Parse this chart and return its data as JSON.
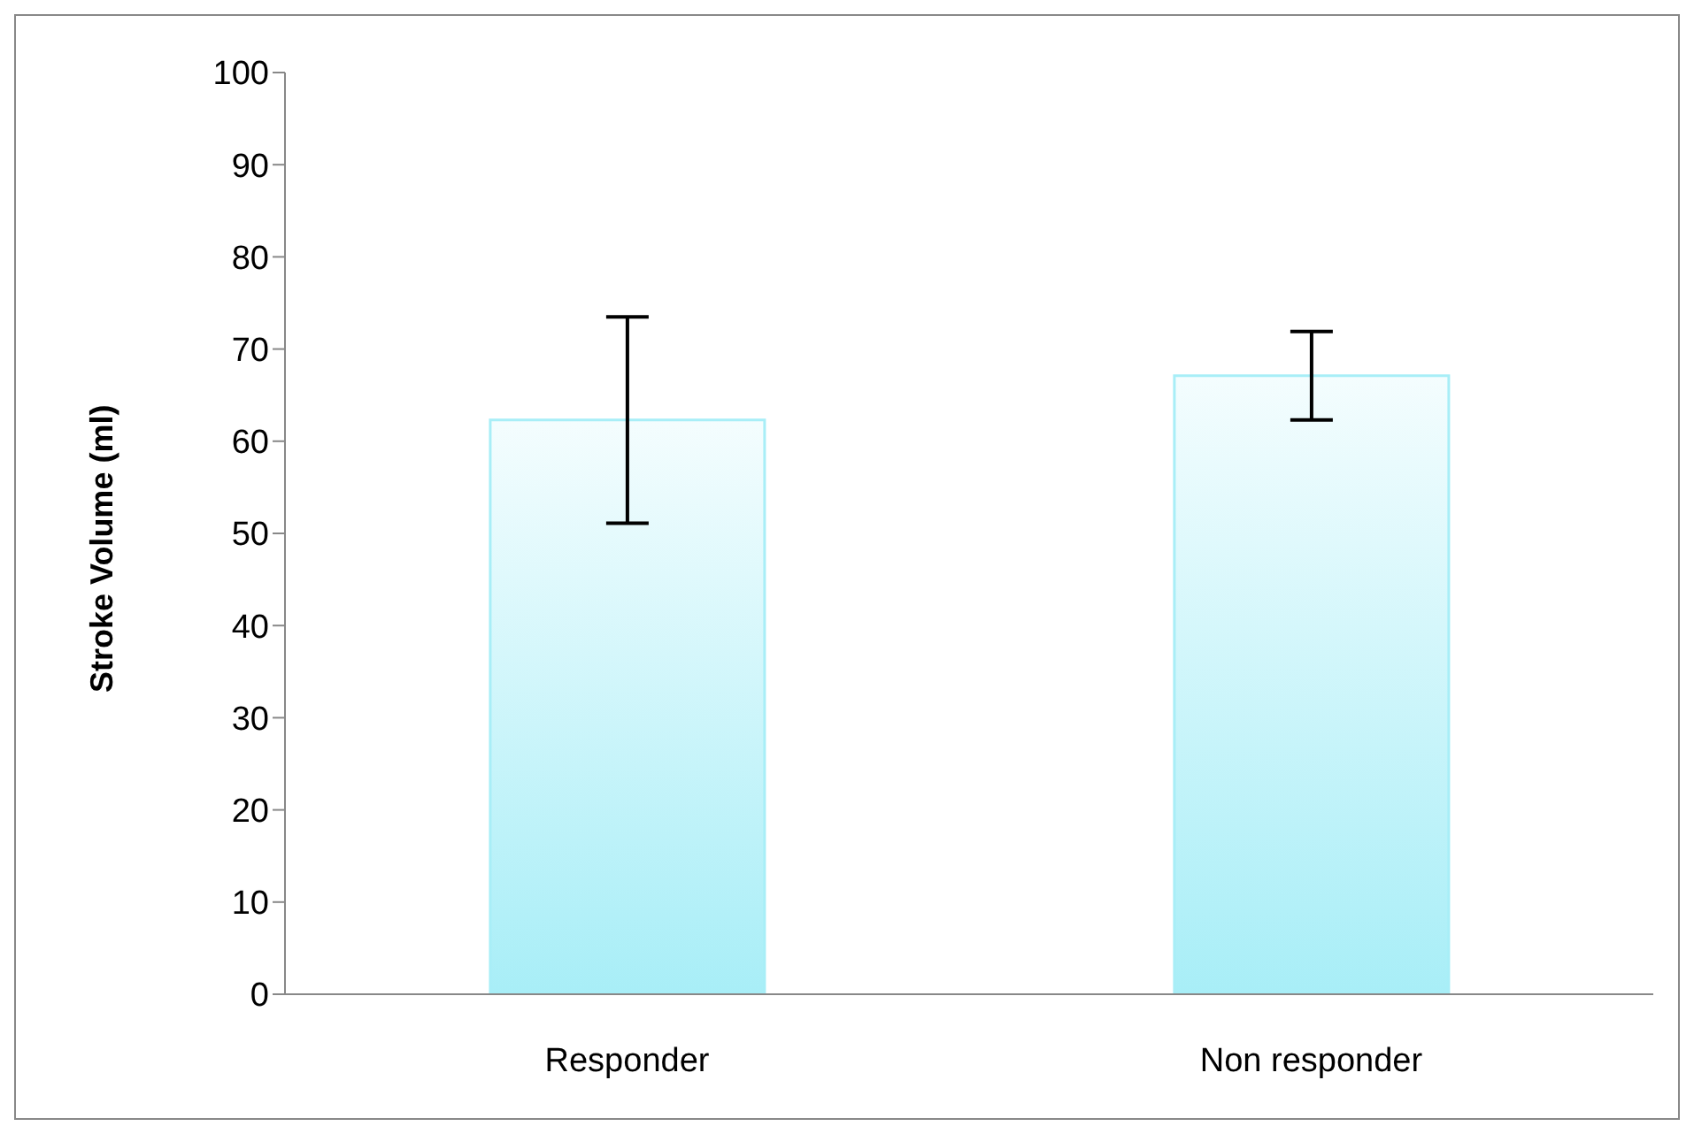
{
  "chart_data": {
    "type": "bar",
    "ylabel": "Stroke Volume (ml)",
    "categories": [
      "Responder",
      "Non responder"
    ],
    "values": [
      62.3,
      67.1
    ],
    "errors": [
      11.2,
      4.8
    ],
    "color": "#a8eef7",
    "ylim": [
      0,
      100
    ],
    "yticks": [
      0,
      10,
      20,
      30,
      40,
      50,
      60,
      70,
      80,
      90,
      100
    ],
    "grid": false,
    "legend": false
  }
}
